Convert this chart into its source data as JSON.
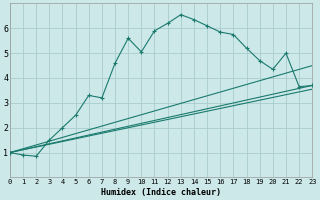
{
  "xlabel": "Humidex (Indice chaleur)",
  "bg_color": "#cce8e8",
  "grid_color": "#aacccc",
  "line_color": "#1a7a6e",
  "xlim": [
    0,
    23
  ],
  "ylim": [
    0,
    7
  ],
  "xticks": [
    0,
    1,
    2,
    3,
    4,
    5,
    6,
    7,
    8,
    9,
    10,
    11,
    12,
    13,
    14,
    15,
    16,
    17,
    18,
    19,
    20,
    21,
    22,
    23
  ],
  "yticks": [
    1,
    2,
    3,
    4,
    5,
    6
  ],
  "series1_x": [
    0,
    1,
    2,
    3,
    4,
    5,
    6,
    7,
    8,
    9,
    10,
    11,
    12,
    13,
    14,
    15,
    16,
    17,
    18,
    19,
    20,
    21,
    22,
    23
  ],
  "series1_y": [
    1.0,
    0.9,
    0.85,
    1.5,
    2.0,
    2.5,
    3.3,
    3.2,
    4.6,
    5.6,
    5.05,
    5.9,
    6.2,
    6.55,
    6.35,
    6.1,
    5.85,
    5.75,
    5.2,
    4.7,
    4.35,
    5.0,
    3.65,
    3.7
  ],
  "series2_x": [
    0,
    23
  ],
  "series2_y": [
    1.0,
    3.7
  ],
  "series3_x": [
    0,
    23
  ],
  "series3_y": [
    1.0,
    3.55
  ],
  "series4_x": [
    0,
    23
  ],
  "series4_y": [
    1.0,
    4.5
  ]
}
